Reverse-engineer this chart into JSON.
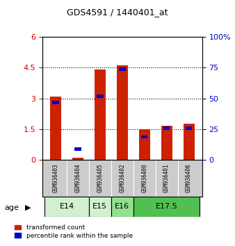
{
  "title": "GDS4591 / 1440401_at",
  "samples": [
    "GSM936403",
    "GSM936404",
    "GSM936405",
    "GSM936402",
    "GSM936400",
    "GSM936401",
    "GSM936406"
  ],
  "red_values": [
    3.08,
    0.12,
    4.4,
    4.6,
    1.48,
    1.68,
    1.78
  ],
  "blue_pct": [
    48,
    10,
    53,
    75,
    20,
    27,
    27
  ],
  "age_groups": [
    {
      "label": "E14",
      "start": 0,
      "end": 2,
      "color": "#d0f0d0"
    },
    {
      "label": "E15",
      "start": 2,
      "end": 3,
      "color": "#d0f0d0"
    },
    {
      "label": "E16",
      "start": 3,
      "end": 4,
      "color": "#90e090"
    },
    {
      "label": "E17.5",
      "start": 4,
      "end": 7,
      "color": "#50c050"
    }
  ],
  "ylim_left": [
    0,
    6
  ],
  "ylim_right": [
    0,
    100
  ],
  "yticks_left": [
    0,
    1.5,
    3,
    4.5,
    6
  ],
  "yticks_right": [
    0,
    25,
    50,
    75,
    100
  ],
  "ytick_labels_left": [
    "0",
    "1.5",
    "3",
    "4.5",
    "6"
  ],
  "ytick_labels_right": [
    "0",
    "25",
    "50",
    "75",
    "100%"
  ],
  "left_tick_color": "#cc0000",
  "right_tick_color": "#0000cc",
  "bar_red_color": "#cc2200",
  "bar_blue_color": "#0000cc",
  "bg_color": "#ffffff",
  "sample_bg_color": "#cccccc",
  "age_label": "age",
  "blue_thickness": 0.15,
  "bar_width": 0.5
}
